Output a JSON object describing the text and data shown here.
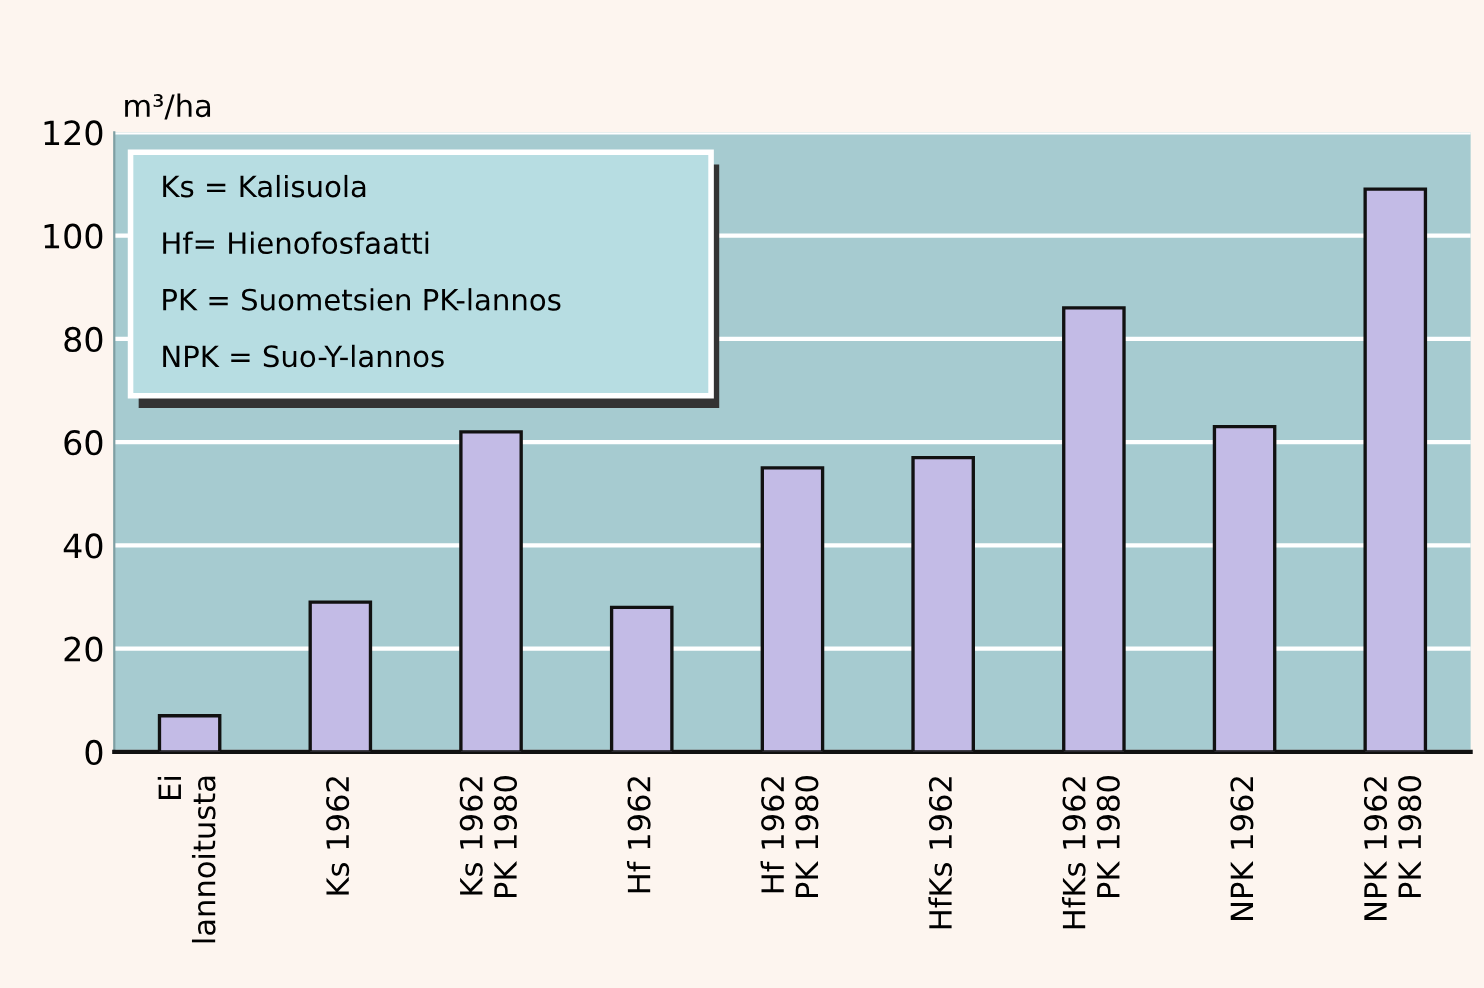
{
  "chart_data": {
    "type": "bar",
    "ylabel": "m³/ha",
    "categories": [
      "Ei\nlannoitusta",
      "Ks 1962",
      "Ks 1962\nPK 1980",
      "Hf 1962",
      "Hf 1962\nPK 1980",
      "HfKs 1962",
      "HfKs 1962\nPK 1980",
      "NPK 1962",
      "NPK 1962\nPK 1980"
    ],
    "values": [
      7,
      29,
      62,
      28,
      55,
      57,
      86,
      63,
      109
    ],
    "color": "#c3bbe6",
    "ylim": [
      0,
      120
    ],
    "yticks": [
      0,
      20,
      40,
      60,
      80,
      100,
      120
    ],
    "grid": "y",
    "annotations": [
      "Ks = Kalisuola",
      "Hf= Hienofosfaatti",
      "PK = Suometsien PK-lannos",
      "NPK = Suo-Y-lannos"
    ]
  }
}
